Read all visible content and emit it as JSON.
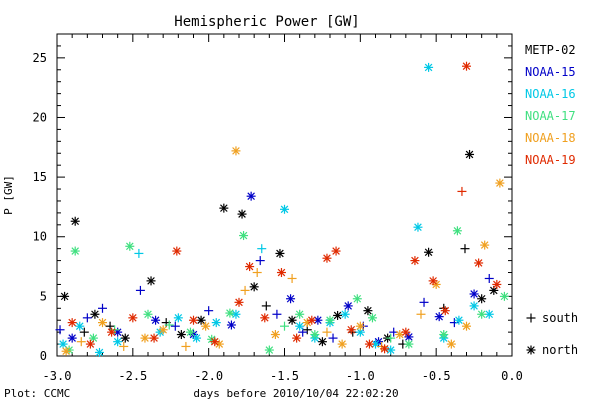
{
  "chart_data": {
    "type": "scatter",
    "title": "Hemispheric Power [GW]",
    "xlabel": "days before 2010/10/04 22:02:20",
    "ylabel": "P [GW]",
    "xlim": [
      -3.0,
      0.0
    ],
    "ylim": [
      0,
      27
    ],
    "x_ticks": [
      "-3.0",
      "-2.5",
      "-2.0",
      "-1.5",
      "-1.0",
      "-0.5",
      "0.0"
    ],
    "y_ticks": [
      "0",
      "5",
      "10",
      "15",
      "20",
      "25"
    ],
    "credit": "Plot: CCMC",
    "marker_legend": [
      {
        "symbol": "+",
        "label": "south"
      },
      {
        "symbol": "*",
        "label": "north"
      }
    ],
    "series": [
      {
        "name": "METP-02",
        "color": "#000000",
        "points": [
          {
            "x": -2.95,
            "y": 5.0,
            "m": "*"
          },
          {
            "x": -2.88,
            "y": 11.3,
            "m": "*"
          },
          {
            "x": -2.82,
            "y": 2.0,
            "m": "+"
          },
          {
            "x": -2.75,
            "y": 3.5,
            "m": "*"
          },
          {
            "x": -2.65,
            "y": 2.5,
            "m": "+"
          },
          {
            "x": -2.55,
            "y": 1.5,
            "m": "*"
          },
          {
            "x": -2.38,
            "y": 6.3,
            "m": "*"
          },
          {
            "x": -2.28,
            "y": 2.8,
            "m": "+"
          },
          {
            "x": -2.18,
            "y": 1.8,
            "m": "*"
          },
          {
            "x": -2.05,
            "y": 3.0,
            "m": "*"
          },
          {
            "x": -1.9,
            "y": 12.4,
            "m": "*"
          },
          {
            "x": -1.78,
            "y": 11.9,
            "m": "*"
          },
          {
            "x": -1.7,
            "y": 5.8,
            "m": "*"
          },
          {
            "x": -1.62,
            "y": 4.2,
            "m": "+"
          },
          {
            "x": -1.53,
            "y": 8.6,
            "m": "*"
          },
          {
            "x": -1.45,
            "y": 3.0,
            "m": "*"
          },
          {
            "x": -1.35,
            "y": 2.2,
            "m": "+"
          },
          {
            "x": -1.25,
            "y": 1.2,
            "m": "*"
          },
          {
            "x": -1.15,
            "y": 3.4,
            "m": "*"
          },
          {
            "x": -1.05,
            "y": 2.0,
            "m": "+"
          },
          {
            "x": -0.95,
            "y": 3.8,
            "m": "*"
          },
          {
            "x": -0.82,
            "y": 1.5,
            "m": "*"
          },
          {
            "x": -0.72,
            "y": 1.0,
            "m": "+"
          },
          {
            "x": -0.55,
            "y": 8.7,
            "m": "*"
          },
          {
            "x": -0.45,
            "y": 4.0,
            "m": "+"
          },
          {
            "x": -0.31,
            "y": 9.0,
            "m": "+"
          },
          {
            "x": -0.28,
            "y": 16.9,
            "m": "*"
          },
          {
            "x": -0.2,
            "y": 4.8,
            "m": "*"
          },
          {
            "x": -0.12,
            "y": 5.5,
            "m": "*"
          }
        ]
      },
      {
        "name": "NOAA-15",
        "color": "#0000c8",
        "points": [
          {
            "x": -2.98,
            "y": 2.2,
            "m": "+"
          },
          {
            "x": -2.9,
            "y": 1.5,
            "m": "*"
          },
          {
            "x": -2.8,
            "y": 3.2,
            "m": "+"
          },
          {
            "x": -2.7,
            "y": 4.0,
            "m": "+"
          },
          {
            "x": -2.6,
            "y": 2.0,
            "m": "*"
          },
          {
            "x": -2.45,
            "y": 5.5,
            "m": "+"
          },
          {
            "x": -2.35,
            "y": 3.0,
            "m": "*"
          },
          {
            "x": -2.22,
            "y": 2.5,
            "m": "+"
          },
          {
            "x": -2.1,
            "y": 1.8,
            "m": "*"
          },
          {
            "x": -2.0,
            "y": 3.8,
            "m": "+"
          },
          {
            "x": -1.85,
            "y": 2.6,
            "m": "*"
          },
          {
            "x": -1.72,
            "y": 13.4,
            "m": "*"
          },
          {
            "x": -1.66,
            "y": 8.0,
            "m": "+"
          },
          {
            "x": -1.55,
            "y": 3.5,
            "m": "+"
          },
          {
            "x": -1.46,
            "y": 4.8,
            "m": "*"
          },
          {
            "x": -1.38,
            "y": 2.0,
            "m": "+"
          },
          {
            "x": -1.28,
            "y": 3.0,
            "m": "*"
          },
          {
            "x": -1.18,
            "y": 1.5,
            "m": "+"
          },
          {
            "x": -1.08,
            "y": 4.2,
            "m": "*"
          },
          {
            "x": -0.98,
            "y": 2.5,
            "m": "+"
          },
          {
            "x": -0.88,
            "y": 1.2,
            "m": "*"
          },
          {
            "x": -0.78,
            "y": 2.0,
            "m": "+"
          },
          {
            "x": -0.68,
            "y": 1.6,
            "m": "*"
          },
          {
            "x": -0.58,
            "y": 4.5,
            "m": "+"
          },
          {
            "x": -0.48,
            "y": 3.3,
            "m": "*"
          },
          {
            "x": -0.38,
            "y": 2.8,
            "m": "+"
          },
          {
            "x": -0.25,
            "y": 5.2,
            "m": "*"
          },
          {
            "x": -0.15,
            "y": 6.5,
            "m": "+"
          }
        ]
      },
      {
        "name": "NOAA-16",
        "color": "#00c8e6",
        "points": [
          {
            "x": -2.96,
            "y": 1.0,
            "m": "*"
          },
          {
            "x": -2.85,
            "y": 2.5,
            "m": "*"
          },
          {
            "x": -2.72,
            "y": 0.3,
            "m": "*"
          },
          {
            "x": -2.6,
            "y": 1.2,
            "m": "*"
          },
          {
            "x": -2.46,
            "y": 8.6,
            "m": "+"
          },
          {
            "x": -2.32,
            "y": 2.0,
            "m": "*"
          },
          {
            "x": -2.2,
            "y": 3.2,
            "m": "*"
          },
          {
            "x": -2.08,
            "y": 1.5,
            "m": "*"
          },
          {
            "x": -1.95,
            "y": 2.8,
            "m": "*"
          },
          {
            "x": -1.82,
            "y": 3.5,
            "m": "*"
          },
          {
            "x": -1.65,
            "y": 9.0,
            "m": "+"
          },
          {
            "x": -1.5,
            "y": 12.3,
            "m": "*"
          },
          {
            "x": -1.4,
            "y": 2.5,
            "m": "*"
          },
          {
            "x": -1.3,
            "y": 1.5,
            "m": "*"
          },
          {
            "x": -1.2,
            "y": 2.8,
            "m": "*"
          },
          {
            "x": -1.1,
            "y": 3.5,
            "m": "*"
          },
          {
            "x": -1.0,
            "y": 2.0,
            "m": "*"
          },
          {
            "x": -0.9,
            "y": 1.0,
            "m": "*"
          },
          {
            "x": -0.8,
            "y": 0.5,
            "m": "*"
          },
          {
            "x": -0.62,
            "y": 10.8,
            "m": "*"
          },
          {
            "x": -0.55,
            "y": 24.2,
            "m": "*"
          },
          {
            "x": -0.45,
            "y": 1.5,
            "m": "*"
          },
          {
            "x": -0.35,
            "y": 3.0,
            "m": "*"
          },
          {
            "x": -0.25,
            "y": 4.2,
            "m": "*"
          },
          {
            "x": -0.15,
            "y": 3.5,
            "m": "*"
          }
        ]
      },
      {
        "name": "NOAA-17",
        "color": "#40e080",
        "points": [
          {
            "x": -2.92,
            "y": 0.5,
            "m": "*"
          },
          {
            "x": -2.88,
            "y": 8.8,
            "m": "*"
          },
          {
            "x": -2.76,
            "y": 1.5,
            "m": "*"
          },
          {
            "x": -2.62,
            "y": 2.2,
            "m": "+"
          },
          {
            "x": -2.52,
            "y": 9.2,
            "m": "*"
          },
          {
            "x": -2.4,
            "y": 3.5,
            "m": "*"
          },
          {
            "x": -2.26,
            "y": 2.6,
            "m": "+"
          },
          {
            "x": -2.12,
            "y": 2.0,
            "m": "*"
          },
          {
            "x": -1.98,
            "y": 1.4,
            "m": "*"
          },
          {
            "x": -1.86,
            "y": 3.6,
            "m": "*"
          },
          {
            "x": -1.77,
            "y": 10.1,
            "m": "*"
          },
          {
            "x": -1.6,
            "y": 0.5,
            "m": "*"
          },
          {
            "x": -1.5,
            "y": 2.5,
            "m": "+"
          },
          {
            "x": -1.4,
            "y": 3.5,
            "m": "*"
          },
          {
            "x": -1.3,
            "y": 1.8,
            "m": "*"
          },
          {
            "x": -1.2,
            "y": 3.0,
            "m": "*"
          },
          {
            "x": -1.02,
            "y": 4.8,
            "m": "*"
          },
          {
            "x": -0.92,
            "y": 3.2,
            "m": "*"
          },
          {
            "x": -0.8,
            "y": 1.5,
            "m": "+"
          },
          {
            "x": -0.68,
            "y": 1.0,
            "m": "*"
          },
          {
            "x": -0.45,
            "y": 1.8,
            "m": "*"
          },
          {
            "x": -0.36,
            "y": 10.5,
            "m": "*"
          },
          {
            "x": -0.2,
            "y": 3.5,
            "m": "*"
          },
          {
            "x": -0.05,
            "y": 5.0,
            "m": "*"
          }
        ]
      },
      {
        "name": "NOAA-18",
        "color": "#f0a020",
        "points": [
          {
            "x": -2.94,
            "y": 0.4,
            "m": "*"
          },
          {
            "x": -2.84,
            "y": 1.2,
            "m": "+"
          },
          {
            "x": -2.7,
            "y": 2.8,
            "m": "*"
          },
          {
            "x": -2.56,
            "y": 0.8,
            "m": "+"
          },
          {
            "x": -2.42,
            "y": 1.5,
            "m": "*"
          },
          {
            "x": -2.3,
            "y": 2.2,
            "m": "*"
          },
          {
            "x": -2.15,
            "y": 0.8,
            "m": "+"
          },
          {
            "x": -2.02,
            "y": 2.5,
            "m": "*"
          },
          {
            "x": -1.93,
            "y": 1.0,
            "m": "*"
          },
          {
            "x": -1.82,
            "y": 17.2,
            "m": "*"
          },
          {
            "x": -1.76,
            "y": 5.5,
            "m": "+"
          },
          {
            "x": -1.68,
            "y": 7.0,
            "m": "+"
          },
          {
            "x": -1.56,
            "y": 1.8,
            "m": "*"
          },
          {
            "x": -1.45,
            "y": 6.5,
            "m": "+"
          },
          {
            "x": -1.35,
            "y": 2.8,
            "m": "*"
          },
          {
            "x": -1.22,
            "y": 2.0,
            "m": "+"
          },
          {
            "x": -1.12,
            "y": 1.0,
            "m": "*"
          },
          {
            "x": -1.0,
            "y": 2.5,
            "m": "*"
          },
          {
            "x": -0.86,
            "y": 0.8,
            "m": "+"
          },
          {
            "x": -0.74,
            "y": 1.8,
            "m": "*"
          },
          {
            "x": -0.6,
            "y": 3.5,
            "m": "+"
          },
          {
            "x": -0.5,
            "y": 6.0,
            "m": "*"
          },
          {
            "x": -0.4,
            "y": 1.0,
            "m": "*"
          },
          {
            "x": -0.3,
            "y": 2.5,
            "m": "*"
          },
          {
            "x": -0.18,
            "y": 9.3,
            "m": "*"
          },
          {
            "x": -0.08,
            "y": 14.5,
            "m": "*"
          }
        ]
      },
      {
        "name": "NOAA-19",
        "color": "#e02a00",
        "points": [
          {
            "x": -2.9,
            "y": 2.8,
            "m": "*"
          },
          {
            "x": -2.78,
            "y": 1.0,
            "m": "*"
          },
          {
            "x": -2.64,
            "y": 2.0,
            "m": "*"
          },
          {
            "x": -2.5,
            "y": 3.2,
            "m": "*"
          },
          {
            "x": -2.36,
            "y": 1.5,
            "m": "*"
          },
          {
            "x": -2.21,
            "y": 8.8,
            "m": "*"
          },
          {
            "x": -2.1,
            "y": 3.0,
            "m": "*"
          },
          {
            "x": -1.96,
            "y": 1.2,
            "m": "*"
          },
          {
            "x": -1.8,
            "y": 4.5,
            "m": "*"
          },
          {
            "x": -1.73,
            "y": 7.5,
            "m": "*"
          },
          {
            "x": -1.63,
            "y": 3.2,
            "m": "*"
          },
          {
            "x": -1.52,
            "y": 7.0,
            "m": "*"
          },
          {
            "x": -1.42,
            "y": 1.5,
            "m": "*"
          },
          {
            "x": -1.32,
            "y": 3.0,
            "m": "*"
          },
          {
            "x": -1.22,
            "y": 8.2,
            "m": "*"
          },
          {
            "x": -1.16,
            "y": 8.8,
            "m": "*"
          },
          {
            "x": -1.06,
            "y": 2.2,
            "m": "*"
          },
          {
            "x": -0.94,
            "y": 1.0,
            "m": "*"
          },
          {
            "x": -0.84,
            "y": 0.6,
            "m": "*"
          },
          {
            "x": -0.7,
            "y": 2.0,
            "m": "*"
          },
          {
            "x": -0.64,
            "y": 8.0,
            "m": "*"
          },
          {
            "x": -0.52,
            "y": 6.3,
            "m": "*"
          },
          {
            "x": -0.44,
            "y": 3.8,
            "m": "*"
          },
          {
            "x": -0.33,
            "y": 13.8,
            "m": "+"
          },
          {
            "x": -0.3,
            "y": 24.3,
            "m": "*"
          },
          {
            "x": -0.22,
            "y": 7.8,
            "m": "*"
          },
          {
            "x": -0.1,
            "y": 6.0,
            "m": "*"
          }
        ]
      }
    ]
  }
}
